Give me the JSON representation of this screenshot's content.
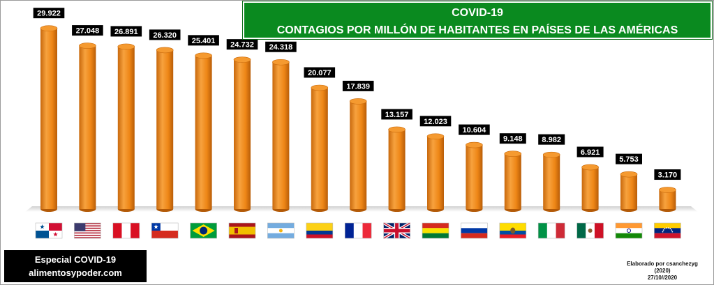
{
  "title": {
    "line1": "COVID-19",
    "line2": "CONTAGIOS POR MILLÓN DE HABITANTES EN PAÍSES DE LAS AMÉRICAS"
  },
  "brand": {
    "line1": "Especial COVID-19",
    "line2": "alimentosypoder.com"
  },
  "credit": {
    "line1": "Elaborado por csanchezyg",
    "line2": "(2020)",
    "line3": "27/10//2020"
  },
  "colors": {
    "bar": "#f0891a",
    "bar_dark": "#c96a0c",
    "label_bg": "#000000",
    "title_bg": "#0a8a1f"
  },
  "chart_data": {
    "type": "bar",
    "categories": [
      "panama-flag",
      "usa-flag",
      "peru-flag",
      "chile-flag",
      "brazil-flag",
      "spain-flag",
      "argentina-flag",
      "colombia-flag",
      "france-flag",
      "uk-flag",
      "bolivia-flag",
      "russia-flag",
      "ecuador-flag",
      "italy-flag",
      "mexico-flag",
      "india-flag",
      "venezuela-flag"
    ],
    "values": [
      29922,
      27048,
      26891,
      26320,
      25401,
      24732,
      24318,
      20077,
      17839,
      13157,
      12023,
      10604,
      9148,
      8982,
      6921,
      5753,
      3170
    ],
    "value_labels": [
      "29.922",
      "27.048",
      "26.891",
      "26.320",
      "25.401",
      "24.732",
      "24.318",
      "20.077",
      "17.839",
      "13.157",
      "12.023",
      "10.604",
      "9.148",
      "8.982",
      "6.921",
      "5.753",
      "3.170"
    ],
    "ylim": [
      0,
      30000
    ],
    "grid": false,
    "legend": "none"
  }
}
